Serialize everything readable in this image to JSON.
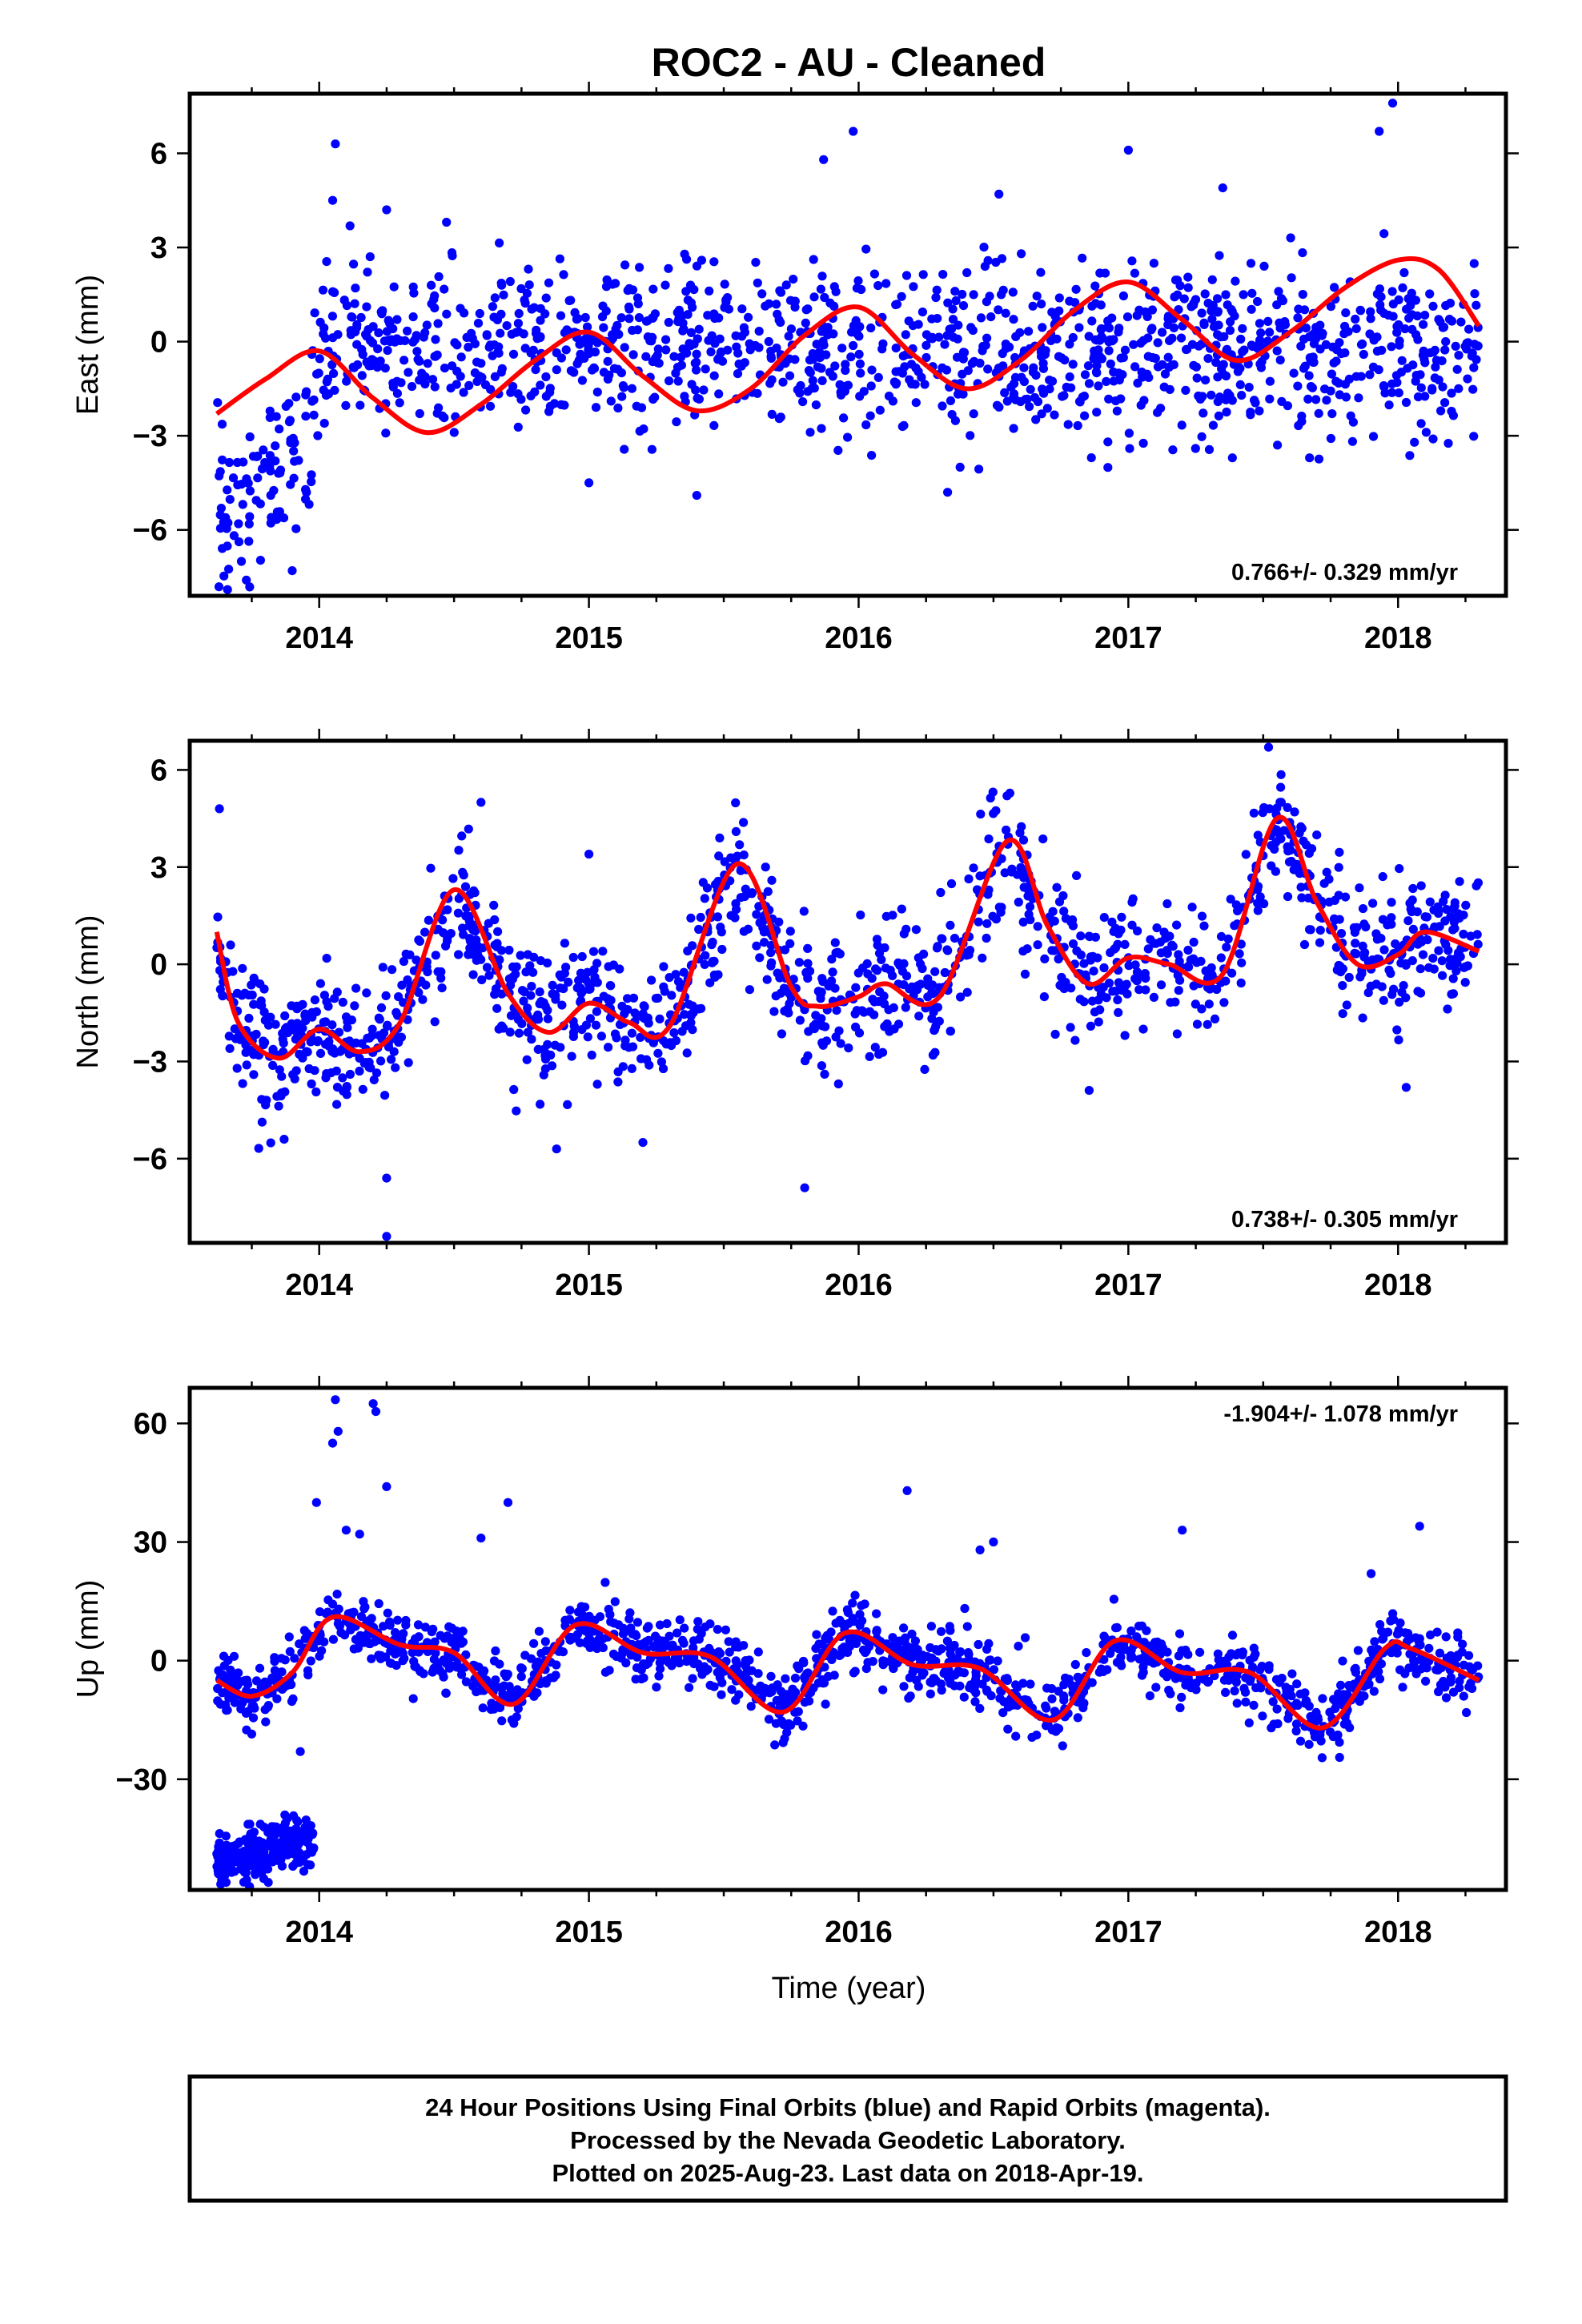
{
  "title": "ROC2  - AU - Cleaned",
  "xlabel": "Time (year)",
  "footer": {
    "line1": "24 Hour Positions Using Final Orbits (blue) and Rapid Orbits (magenta).",
    "line2": "Processed by the Nevada Geodetic Laboratory.",
    "line3": "Plotted on 2025-Aug-23. Last data on 2018-Apr-19."
  },
  "colors": {
    "final_orbits": "#0000ff",
    "model": "#ff0000",
    "rapid_orbits": "#ff00ff"
  },
  "chart_data": [
    {
      "type": "scatter",
      "ylabel": "East (mm)",
      "rate": "0.766+/- 0.329 mm/yr",
      "xlim": [
        2013.52,
        2018.4
      ],
      "ylim": [
        -8.1,
        7.9
      ],
      "xticks": [
        2014,
        2015,
        2016,
        2017,
        2018
      ],
      "yticks": [
        -6,
        -3,
        0,
        3,
        6
      ],
      "ytick_labels": [
        "−6",
        "−3",
        "0",
        "3",
        "6"
      ],
      "model": {
        "name": "fit",
        "x": [
          2013.62,
          2013.8,
          2014.0,
          2014.2,
          2014.4,
          2014.6,
          2014.8,
          2015.0,
          2015.2,
          2015.4,
          2015.6,
          2015.8,
          2016.0,
          2016.2,
          2016.4,
          2016.6,
          2016.8,
          2017.0,
          2017.2,
          2017.4,
          2017.6,
          2017.8,
          2018.0,
          2018.15,
          2018.3
        ],
        "y": [
          -2.3,
          -1.2,
          -0.3,
          -1.8,
          -2.9,
          -2.0,
          -0.6,
          0.3,
          -1.1,
          -2.2,
          -1.5,
          0.2,
          1.1,
          -0.4,
          -1.5,
          -0.6,
          1.0,
          1.9,
          0.7,
          -0.6,
          0.3,
          1.7,
          2.6,
          2.3,
          0.5
        ]
      },
      "series": [
        {
          "name": "Final Orbits",
          "start": 2013.62,
          "end": 2018.3,
          "count": 1400,
          "scatter_sd": 1.3,
          "baseline": {
            "x": [
              2013.62,
              2013.8,
              2013.95,
              2014.0
            ],
            "y": [
              -5.5,
              -4.5,
              -3.5,
              -0.3
            ]
          },
          "outliers": [
            [
              2014.06,
              6.3
            ],
            [
              2014.05,
              4.5
            ],
            [
              2014.25,
              4.2
            ],
            [
              2015.98,
              6.7
            ],
            [
              2015.87,
              5.8
            ],
            [
              2017.0,
              6.1
            ],
            [
              2017.98,
              7.6
            ],
            [
              2017.93,
              6.7
            ],
            [
              2013.66,
              -7.9
            ],
            [
              2013.73,
              -7.6
            ],
            [
              2013.9,
              -7.3
            ],
            [
              2015.4,
              -4.9
            ],
            [
              2015.0,
              -4.5
            ],
            [
              2016.33,
              -4.8
            ],
            [
              2018.13,
              -3.1
            ],
            [
              2016.52,
              4.7
            ],
            [
              2017.35,
              4.9
            ]
          ]
        }
      ]
    },
    {
      "type": "scatter",
      "ylabel": "North (mm)",
      "rate": "0.738+/- 0.305 mm/yr",
      "xlim": [
        2013.52,
        2018.4
      ],
      "ylim": [
        -8.6,
        6.9
      ],
      "xticks": [
        2014,
        2015,
        2016,
        2017,
        2018
      ],
      "yticks": [
        -6,
        -3,
        0,
        3,
        6
      ],
      "ytick_labels": [
        "−6",
        "−3",
        "0",
        "3",
        "6"
      ],
      "model": {
        "name": "fit",
        "x": [
          2013.62,
          2013.7,
          2013.85,
          2014.0,
          2014.15,
          2014.3,
          2014.5,
          2014.7,
          2014.85,
          2015.0,
          2015.15,
          2015.3,
          2015.55,
          2015.75,
          2015.85,
          2016.0,
          2016.1,
          2016.3,
          2016.55,
          2016.7,
          2016.85,
          2017.0,
          2017.15,
          2017.35,
          2017.55,
          2017.7,
          2017.85,
          2018.0,
          2018.1,
          2018.3
        ],
        "y": [
          1.0,
          -1.8,
          -2.9,
          -2.0,
          -2.7,
          -1.8,
          2.3,
          -0.9,
          -2.1,
          -1.2,
          -1.8,
          -1.9,
          3.1,
          -0.7,
          -1.3,
          -1.0,
          -0.6,
          -1.0,
          3.8,
          1.2,
          -0.6,
          0.2,
          0.0,
          -0.3,
          4.5,
          1.9,
          0.0,
          0.3,
          1.0,
          0.4
        ]
      },
      "series": [
        {
          "name": "Final Orbits",
          "start": 2013.62,
          "end": 2018.3,
          "count": 1400,
          "scatter_sd": 1.0,
          "outliers": [
            [
              2013.63,
              4.8
            ],
            [
              2014.25,
              -8.4
            ],
            [
              2014.25,
              -6.6
            ],
            [
              2015.8,
              -6.9
            ],
            [
              2017.52,
              6.7
            ],
            [
              2015.0,
              3.4
            ],
            [
              2018.03,
              -3.8
            ],
            [
              2016.55,
              5.2
            ],
            [
              2014.6,
              5.0
            ],
            [
              2014.88,
              -5.7
            ],
            [
              2015.2,
              -5.5
            ],
            [
              2013.87,
              -5.4
            ]
          ]
        }
      ]
    },
    {
      "type": "scatter",
      "ylabel": "Up (mm)",
      "rate": "-1.904+/- 1.078 mm/yr",
      "xlim": [
        2013.52,
        2018.4
      ],
      "ylim": [
        -58,
        69
      ],
      "xticks": [
        2014,
        2015,
        2016,
        2017,
        2018
      ],
      "yticks": [
        -30,
        0,
        30,
        60
      ],
      "ytick_labels": [
        "−30",
        "0",
        "30",
        "60"
      ],
      "model": {
        "name": "fit",
        "x": [
          2013.62,
          2013.75,
          2013.9,
          2014.05,
          2014.3,
          2014.5,
          2014.72,
          2014.95,
          2015.2,
          2015.45,
          2015.72,
          2015.95,
          2016.2,
          2016.45,
          2016.72,
          2016.95,
          2017.2,
          2017.45,
          2017.72,
          2017.95,
          2018.05,
          2018.3
        ],
        "y": [
          -5,
          -9,
          -3,
          11,
          4,
          2,
          -11,
          9,
          2,
          1,
          -13,
          7,
          -1,
          -2,
          -15,
          5,
          -3,
          -3,
          -17,
          3,
          3,
          -5
        ]
      },
      "series": [
        {
          "name": "Final Orbits",
          "start": 2013.62,
          "end": 2018.3,
          "count": 1400,
          "scatter_sd": 4.2,
          "outliers": [
            [
              2014.06,
              66
            ],
            [
              2014.05,
              55
            ],
            [
              2014.07,
              58
            ],
            [
              2014.2,
              65
            ],
            [
              2014.21,
              63
            ],
            [
              2014.25,
              44
            ],
            [
              2013.99,
              40
            ],
            [
              2014.7,
              40
            ],
            [
              2014.6,
              31
            ],
            [
              2016.18,
              43
            ],
            [
              2017.2,
              33
            ],
            [
              2016.5,
              30
            ],
            [
              2016.45,
              28
            ],
            [
              2018.08,
              34
            ],
            [
              2017.9,
              22
            ],
            [
              2013.93,
              -23
            ],
            [
              2014.1,
              33
            ],
            [
              2014.15,
              32
            ]
          ]
        },
        {
          "name": "Final Orbits (early offset)",
          "start": 2013.62,
          "end": 2013.98,
          "count": 260,
          "scatter_sd": 3.0,
          "baseline": {
            "x": [
              2013.62,
              2013.98
            ],
            "y": [
              -51,
              -45
            ]
          }
        }
      ]
    }
  ]
}
